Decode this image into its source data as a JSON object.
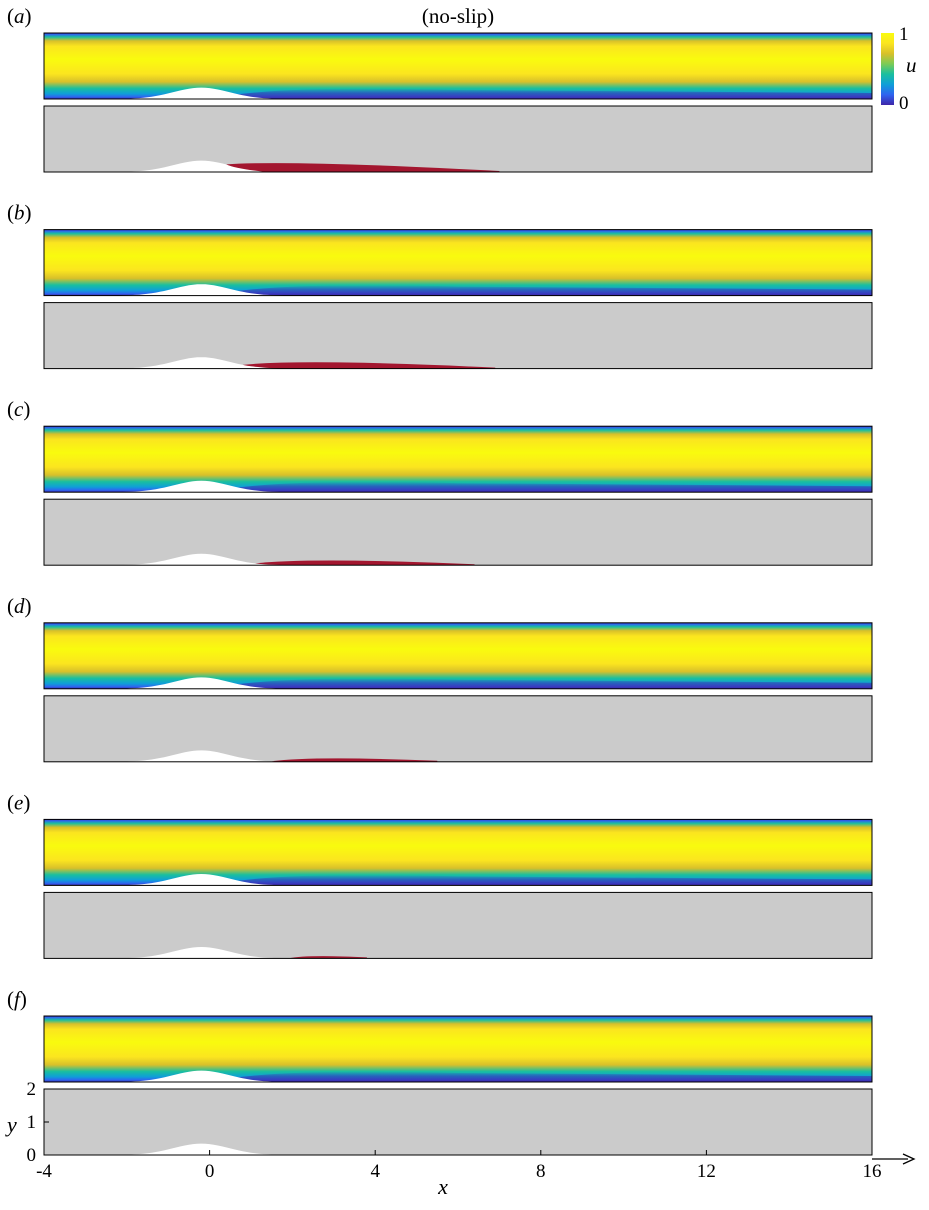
{
  "figure": {
    "title": "(no-slip)",
    "colorbar": {
      "label": "u",
      "max_label": "1",
      "min_label": "0",
      "min_value": 0,
      "max_value": 1
    },
    "panels": [
      {
        "label_open": "(",
        "letter": "a",
        "label_close": ")",
        "separation_x_start": 0.4,
        "separation_x_end": 7.0
      },
      {
        "label_open": "(",
        "letter": "b",
        "label_close": ")",
        "separation_x_start": 0.8,
        "separation_x_end": 6.9
      },
      {
        "label_open": "(",
        "letter": "c",
        "label_close": ")",
        "separation_x_start": 1.1,
        "separation_x_end": 6.4
      },
      {
        "label_open": "(",
        "letter": "d",
        "label_close": ")",
        "separation_x_start": 1.5,
        "separation_x_end": 5.5
      },
      {
        "label_open": "(",
        "letter": "e",
        "label_close": ")",
        "separation_x_start": 1.9,
        "separation_x_end": 3.8
      },
      {
        "label_open": "(",
        "letter": "f",
        "label_close": ")",
        "separation_x_start": null,
        "separation_x_end": null
      }
    ],
    "axes": {
      "x_label": "x",
      "y_label": "y",
      "x_range": [
        -4,
        16
      ],
      "y_range": [
        0,
        2
      ],
      "x_ticks": [
        "-4",
        "0",
        "4",
        "8",
        "12",
        "16"
      ],
      "y_ticks": [
        "0",
        "1",
        "2"
      ]
    },
    "bump": {
      "center_x": -0.2,
      "height": 0.3
    },
    "colors": {
      "background_mask": "#cbcbcb",
      "separation": "#a3162f",
      "colormap": [
        "#3e26a8",
        "#2f64f0",
        "#0f9fd8",
        "#19bf9f",
        "#7ccb56",
        "#d8c02a",
        "#fbe51f",
        "#f9fb0e"
      ]
    }
  }
}
